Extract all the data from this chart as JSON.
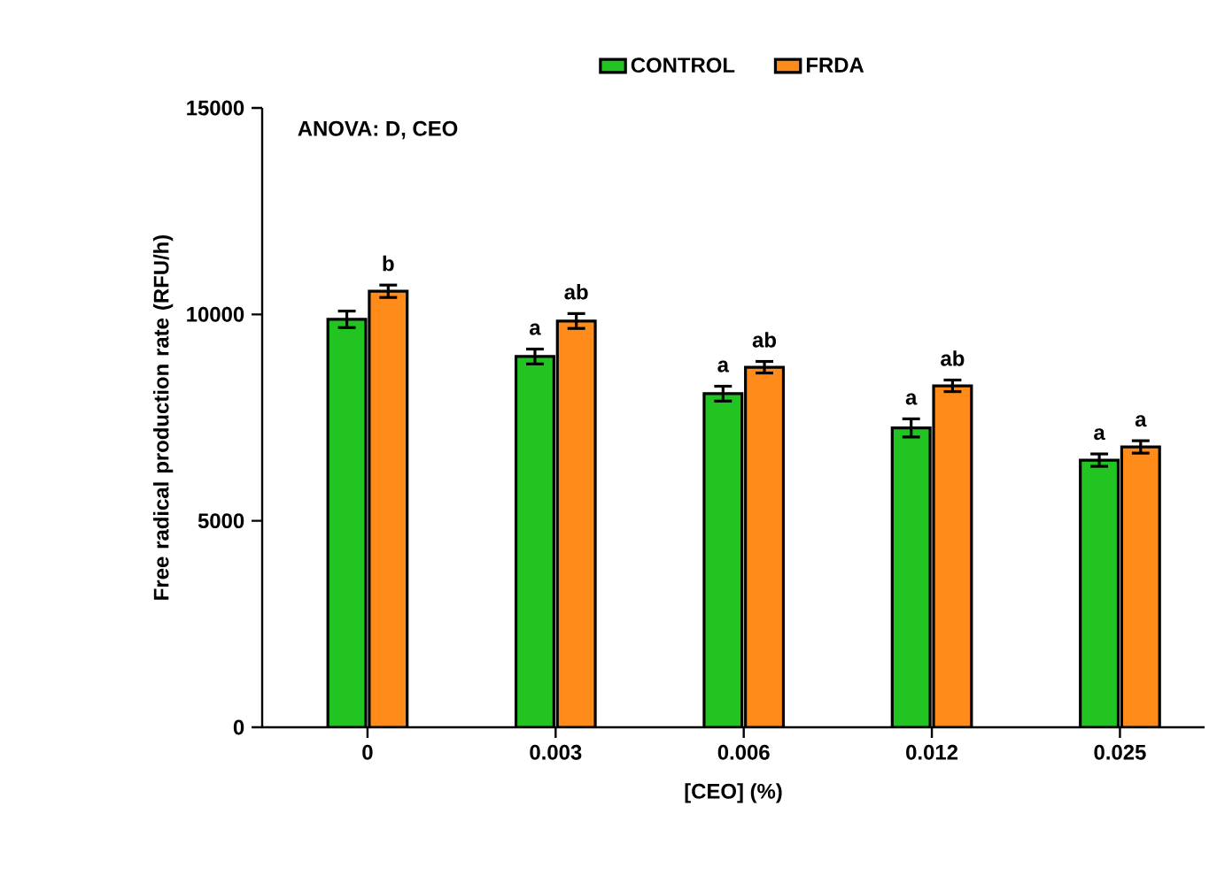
{
  "chart_data": {
    "type": "bar",
    "xlabel": "[CEO] (%)",
    "ylabel": "Free radical production rate (RFU/h)",
    "categories": [
      "0",
      "0.003",
      "0.006",
      "0.012",
      "0.025"
    ],
    "series": [
      {
        "name": "CONTROL",
        "color": "#22c422",
        "values": [
          9880,
          8980,
          8080,
          7250,
          6470
        ],
        "errors": [
          200,
          180,
          180,
          220,
          150
        ],
        "value_labels": [
          null,
          "a",
          "a",
          "a",
          "a"
        ]
      },
      {
        "name": "FRDA",
        "color": "#ff8c1a",
        "values": [
          10560,
          9840,
          8720,
          8270,
          6790
        ],
        "errors": [
          150,
          180,
          140,
          140,
          150
        ],
        "value_labels": [
          "b",
          "ab",
          "ab",
          "ab",
          "a"
        ]
      }
    ],
    "ylim": [
      0,
      15000
    ],
    "yticks": [
      0,
      5000,
      10000,
      15000
    ],
    "annotations": [
      "ANOVA: D, CEO"
    ],
    "legend": "top",
    "grid": false
  }
}
